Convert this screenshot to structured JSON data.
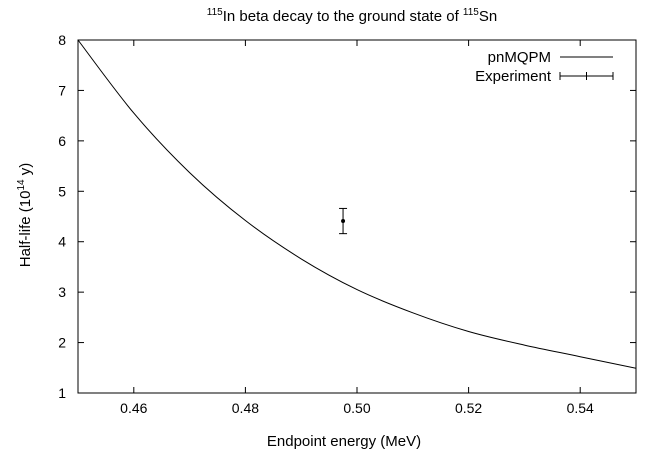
{
  "chart_data": {
    "type": "line",
    "title": {
      "sup1": "115",
      "part1": "In beta decay to the ground state of ",
      "sup2": "115",
      "part2": "Sn"
    },
    "xlabel": "Endpoint energy (MeV)",
    "ylabel": {
      "part1": "Half-life (10",
      "sup": "14",
      "part2": " y)"
    },
    "xlim": [
      0.45,
      0.55
    ],
    "ylim": [
      1,
      8
    ],
    "xticks": [
      "0.46",
      "0.48",
      "0.50",
      "0.52",
      "0.54"
    ],
    "xtick_values": [
      0.46,
      0.48,
      0.5,
      0.52,
      0.54
    ],
    "yticks": [
      "1",
      "2",
      "3",
      "4",
      "5",
      "6",
      "7",
      "8"
    ],
    "ytick_values": [
      1,
      2,
      3,
      4,
      5,
      6,
      7,
      8
    ],
    "grid": false,
    "legend_position": "top-right",
    "series": [
      {
        "name": "pnMQPM",
        "style": "line",
        "x": [
          0.45,
          0.46,
          0.47,
          0.48,
          0.49,
          0.5,
          0.51,
          0.52,
          0.53,
          0.54,
          0.55
        ],
        "y": [
          8.0,
          6.55,
          5.37,
          4.42,
          3.66,
          3.05,
          2.59,
          2.22,
          1.95,
          1.72,
          1.49
        ]
      },
      {
        "name": "Experiment",
        "style": "errorbar",
        "points": [
          {
            "x": 0.4975,
            "y": 4.41,
            "yerr": 0.25
          }
        ]
      }
    ],
    "colors": {
      "axis": "#000000",
      "line": "#000000",
      "background": "#ffffff"
    }
  }
}
